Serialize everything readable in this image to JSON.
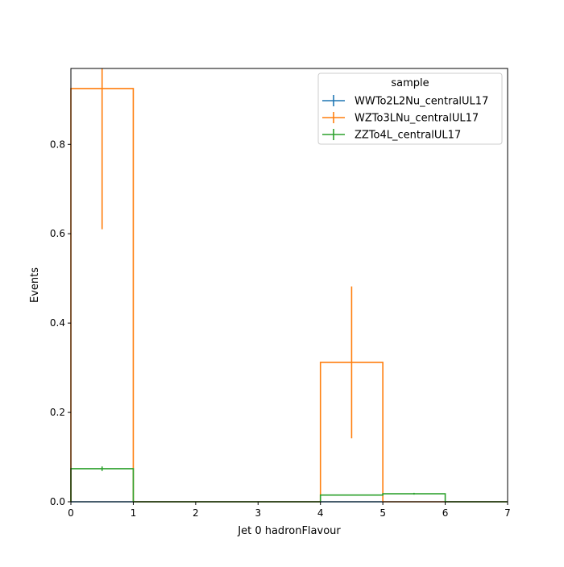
{
  "chart_data": {
    "type": "histogram-step",
    "xlabel": "Jet 0 hadronFlavour",
    "ylabel": "Events",
    "xlim": [
      0,
      7
    ],
    "ylim": [
      0,
      0.97
    ],
    "xticks": [
      0,
      1,
      2,
      3,
      4,
      5,
      6,
      7
    ],
    "yticks": [
      0.0,
      0.2,
      0.4,
      0.6,
      0.8
    ],
    "ytick_labels": [
      "0.0",
      "0.2",
      "0.4",
      "0.6",
      "0.8"
    ],
    "bin_edges": [
      0,
      1,
      2,
      3,
      4,
      5,
      6,
      7
    ],
    "legend": {
      "title": "sample",
      "placement": "upper-right"
    },
    "series": [
      {
        "name": "WWTo2L2Nu_centralUL17",
        "color": "#1f77b4",
        "values": [
          0,
          0,
          0,
          0,
          0,
          0,
          0
        ],
        "errors": [
          0,
          0,
          0,
          0,
          0,
          0,
          0
        ]
      },
      {
        "name": "WZTo3LNu_centralUL17",
        "color": "#ff7f0e",
        "values": [
          0.925,
          0,
          0,
          0,
          0.312,
          0,
          0
        ],
        "errors": [
          0.315,
          0,
          0,
          0,
          0.17,
          0,
          0
        ]
      },
      {
        "name": "ZZTo4L_centralUL17",
        "color": "#2ca02c",
        "values": [
          0.074,
          0,
          0,
          0,
          0.015,
          0.018,
          0
        ],
        "errors": [
          0.005,
          0,
          0,
          0,
          0.001,
          0.002,
          0
        ]
      }
    ]
  }
}
